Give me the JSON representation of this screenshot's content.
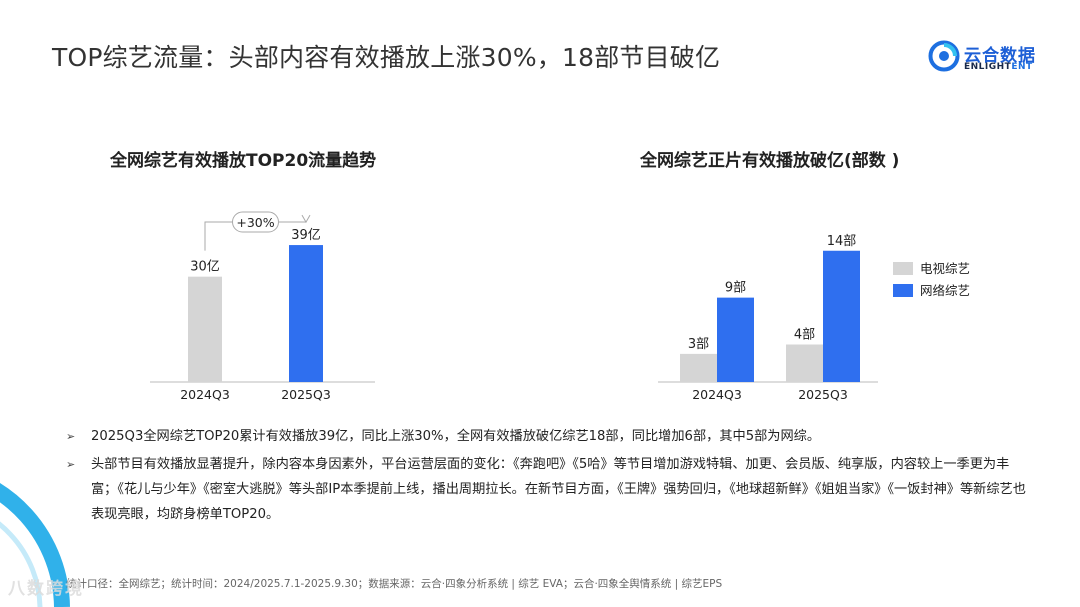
{
  "header": {
    "title": "TOP综艺流量：头部内容有效播放上涨30%，18部节目破亿",
    "logo_cn": "云合数据",
    "logo_en_a": "ENLIGHT",
    "logo_en_b": "ENT"
  },
  "chart_data": [
    {
      "type": "bar",
      "title": "全网综艺有效播放TOP20流量趋势",
      "categories": [
        "2024Q3",
        "2025Q3"
      ],
      "values": [
        30,
        39
      ],
      "value_labels": [
        "30亿",
        "39亿"
      ],
      "colors": [
        "#d5d5d5",
        "#2f6fef"
      ],
      "annotation": "+30%",
      "ylim": [
        0,
        45
      ]
    },
    {
      "type": "bar",
      "title": "全网综艺正片有效播放破亿(部数 )",
      "categories": [
        "2024Q3",
        "2025Q3"
      ],
      "series": [
        {
          "name": "电视综艺",
          "values": [
            3,
            4
          ],
          "labels": [
            "3部",
            "4部"
          ],
          "color": "#d5d5d5"
        },
        {
          "name": "网络综艺",
          "values": [
            9,
            14
          ],
          "labels": [
            "9部",
            "14部"
          ],
          "color": "#2f6fef"
        }
      ],
      "ylim": [
        0,
        16
      ],
      "legend": "right"
    }
  ],
  "bullets": [
    "2025Q3全网综艺TOP20累计有效播放39亿，同比上涨30%，全网有效播放破亿综艺18部，同比增加6部，其中5部为网综。",
    "头部节目有效播放显著提升，除内容本身因素外，平台运营层面的变化：《奔跑吧》《5哈》等节目增加游戏特辑、加更、会员版、纯享版，内容较上一季更为丰富；《花儿与少年》《密室大逃脱》等头部IP本季提前上线，播出周期拉长。在新节目方面，《王牌》强势回归，《地球超新鲜》《姐姐当家》《一饭封神》等新综艺也表现亮眼，均跻身榜单TOP20。"
  ],
  "footnote": "统计口径：全网综艺；统计时间：2024/2025.7.1-2025.9.30；数据来源：云合·四象分析系统 | 综艺 EVA；云合·四象全舆情系统 | 综艺EPS",
  "watermark": "八数跨境"
}
